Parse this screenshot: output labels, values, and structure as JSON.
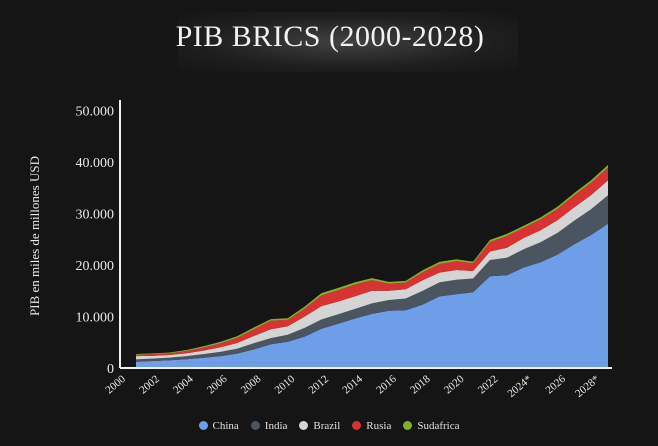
{
  "chart_data": {
    "type": "area",
    "stacked": true,
    "title": "PIB BRICS (2000-2028)",
    "ylabel": "PIB en miles de millones USD",
    "xlabel": "",
    "ylim": [
      0,
      52000
    ],
    "yticks": [
      0,
      10000,
      20000,
      30000,
      40000,
      50000
    ],
    "ytick_labels": [
      "0",
      "10.000",
      "20.000",
      "30.000",
      "40.000",
      "50.000"
    ],
    "xlim": [
      2000,
      2028
    ],
    "xtick_labels": [
      "2000",
      "2002",
      "2004",
      "2006",
      "2008",
      "2010",
      "2012",
      "2014",
      "2016",
      "2018",
      "2020",
      "2022",
      "2024*",
      "2026",
      "2028*"
    ],
    "legend_position": "bottom",
    "x": [
      2000,
      2001,
      2002,
      2003,
      2004,
      2005,
      2006,
      2007,
      2008,
      2009,
      2010,
      2011,
      2012,
      2013,
      2014,
      2015,
      2016,
      2017,
      2018,
      2019,
      2020,
      2021,
      2022,
      2023,
      2024,
      2025,
      2026,
      2027,
      2028
    ],
    "series": [
      {
        "name": "China",
        "color": "#6f9ee8",
        "values": [
          1200,
          1350,
          1500,
          1700,
          2000,
          2300,
          2800,
          3600,
          4600,
          5100,
          6100,
          7600,
          8600,
          9600,
          10500,
          11100,
          11200,
          12300,
          13900,
          14300,
          14700,
          17800,
          18000,
          19500,
          20500,
          22000,
          24000,
          25800,
          28000
        ]
      },
      {
        "name": "India",
        "color": "#4a5560",
        "values": [
          460,
          480,
          510,
          600,
          700,
          820,
          940,
          1230,
          1200,
          1340,
          1680,
          1820,
          1830,
          1860,
          2040,
          2100,
          2290,
          2650,
          2700,
          2840,
          2670,
          3150,
          3390,
          3550,
          3900,
          4200,
          4600,
          5000,
          5500
        ]
      },
      {
        "name": "Brazil",
        "color": "#d4d4d4",
        "values": [
          650,
          560,
          510,
          560,
          670,
          890,
          1110,
          1400,
          1700,
          1670,
          2200,
          2600,
          2470,
          2470,
          2460,
          1800,
          1800,
          2060,
          1920,
          1870,
          1450,
          1650,
          1950,
          2170,
          2330,
          2450,
          2600,
          2750,
          2900
        ]
      },
      {
        "name": "Rusia",
        "color": "#d83232",
        "values": [
          260,
          310,
          350,
          430,
          590,
          760,
          990,
          1300,
          1660,
          1220,
          1520,
          2050,
          2210,
          2290,
          2060,
          1360,
          1280,
          1570,
          1660,
          1690,
          1490,
          1840,
          2270,
          2010,
          2100,
          2200,
          2300,
          2400,
          2500
        ]
      },
      {
        "name": "Sudafrica",
        "color": "#7fb030",
        "values": [
          150,
          140,
          130,
          200,
          260,
          290,
          310,
          340,
          320,
          330,
          420,
          460,
          430,
          400,
          380,
          350,
          330,
          380,
          400,
          390,
          340,
          420,
          410,
          380,
          400,
          420,
          450,
          470,
          500
        ]
      }
    ]
  }
}
